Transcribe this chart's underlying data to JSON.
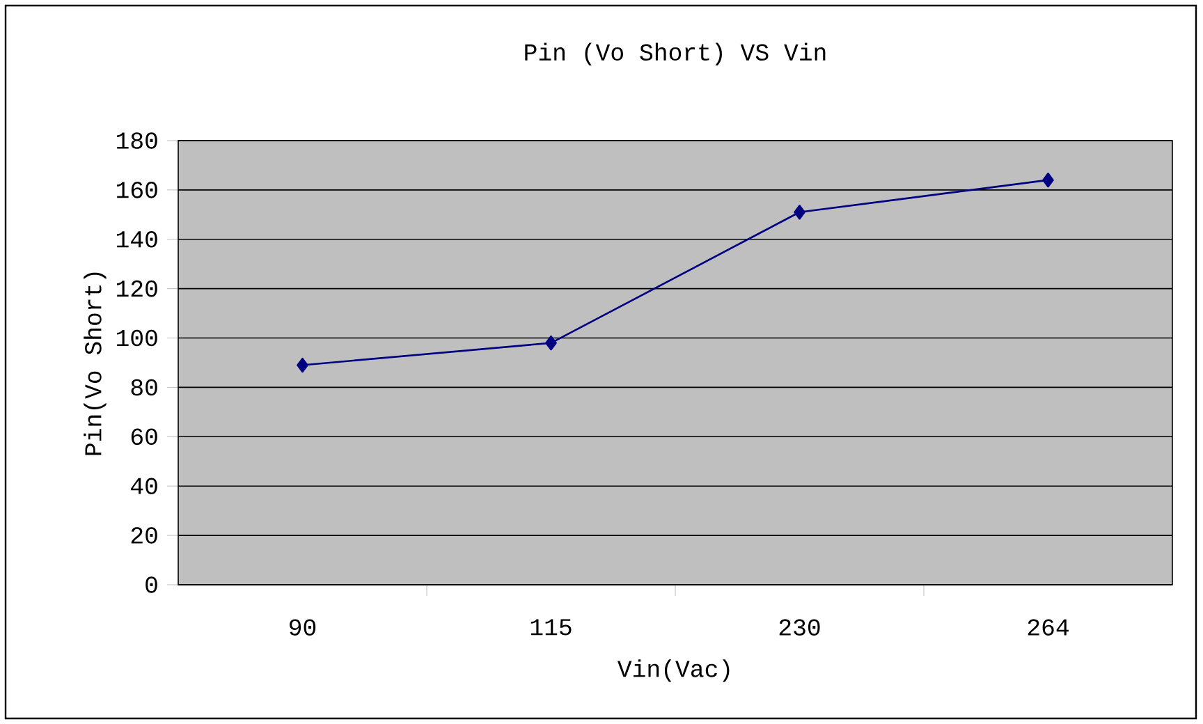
{
  "chart_data": {
    "type": "line",
    "title": "Pin (Vo Short) VS Vin",
    "xlabel": "Vin(Vac)",
    "ylabel": "Pin(Vo Short)",
    "categories": [
      "90",
      "115",
      "230",
      "264"
    ],
    "series": [
      {
        "color": "#000080",
        "values": [
          89,
          98,
          151,
          164
        ]
      }
    ],
    "ylim": [
      0,
      180
    ],
    "yticks": [
      0,
      20,
      40,
      60,
      80,
      100,
      120,
      140,
      160,
      180
    ],
    "grid": "y",
    "marker": "diamond",
    "line_style": "solid"
  }
}
